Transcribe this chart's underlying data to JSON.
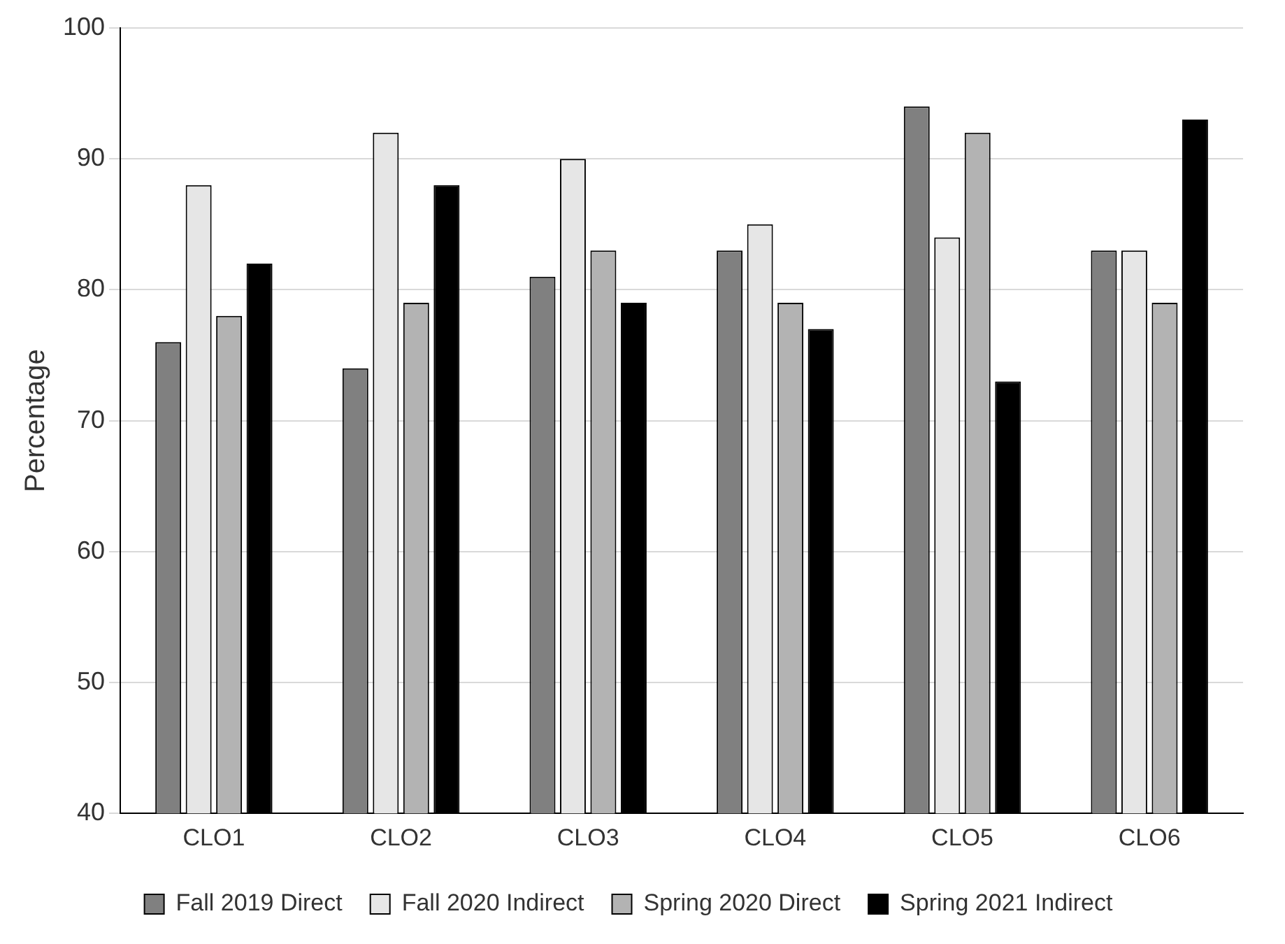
{
  "chart_data": {
    "type": "bar",
    "ylabel": "Percentage",
    "categories": [
      "CLO1",
      "CLO2",
      "CLO3",
      "CLO4",
      "CLO5",
      "CLO6"
    ],
    "series": [
      {
        "name": "Fall 2019 Direct",
        "color": "#808080",
        "values": [
          76,
          74,
          81,
          83,
          94,
          83
        ]
      },
      {
        "name": "Fall 2020 Indirect",
        "color": "#e6e6e6",
        "values": [
          88,
          92,
          90,
          85,
          84,
          83
        ]
      },
      {
        "name": "Spring 2020 Direct",
        "color": "#b3b3b3",
        "values": [
          78,
          79,
          83,
          79,
          92,
          79
        ]
      },
      {
        "name": "Spring 2021 Indirect",
        "color": "#000000",
        "values": [
          82,
          88,
          79,
          77,
          73,
          93
        ]
      }
    ],
    "ylim": [
      40,
      100
    ],
    "yticks": [
      40,
      50,
      60,
      70,
      80,
      90,
      100
    ],
    "grid": "y",
    "legend": "bottom"
  }
}
